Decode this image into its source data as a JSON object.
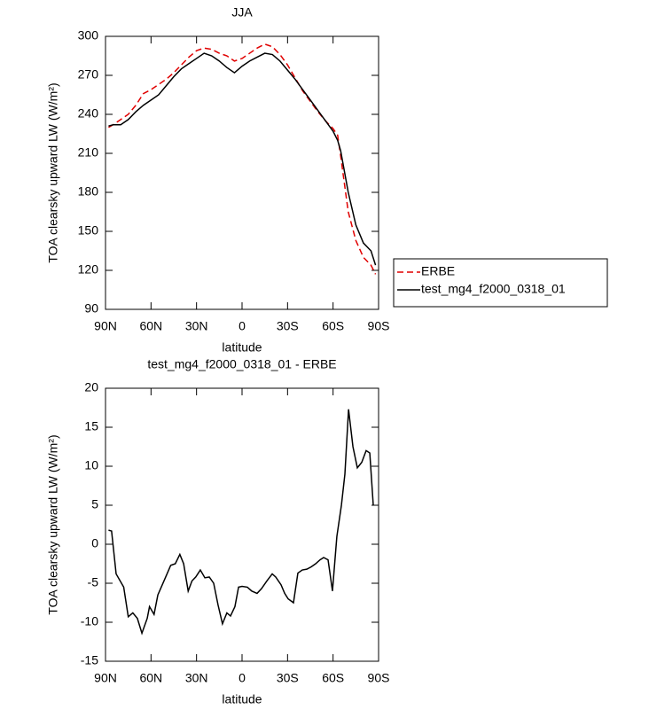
{
  "chart_data": [
    {
      "type": "line",
      "title": "JJA",
      "xlabel": "latitude",
      "ylabel": "TOA clearsky upward LW (W/m²)",
      "x": [
        88,
        85,
        80,
        75,
        70,
        65,
        60,
        55,
        50,
        45,
        40,
        35,
        30,
        25,
        20,
        15,
        10,
        5,
        0,
        -5,
        -10,
        -15,
        -20,
        -25,
        -30,
        -35,
        -40,
        -45,
        -50,
        -55,
        -60,
        -63,
        -65,
        -70,
        -75,
        -80,
        -85,
        -88
      ],
      "series": [
        {
          "name": "ERBE",
          "color": "#e00000",
          "line_style": "dashed",
          "values": [
            230,
            232,
            236,
            240,
            247,
            256,
            259,
            263,
            267,
            272,
            278,
            284,
            289,
            291,
            290,
            287,
            285,
            281,
            283,
            287,
            291,
            294,
            292,
            286,
            278,
            268,
            258,
            250,
            242,
            235,
            229,
            224,
            208,
            165,
            143,
            130,
            124,
            117
          ]
        },
        {
          "name": "test_mg4_f2000_0318_01",
          "color": "#000000",
          "line_style": "solid",
          "values": [
            231,
            232,
            232,
            236,
            242,
            247,
            251,
            255,
            262,
            269,
            275,
            279,
            283,
            287,
            285,
            281,
            276,
            272,
            277,
            281,
            284,
            287,
            286,
            281,
            274,
            267,
            259,
            251,
            243,
            235,
            227,
            220,
            212,
            180,
            155,
            141,
            135,
            124
          ]
        }
      ],
      "xlim": [
        90,
        -90
      ],
      "xticks": [
        {
          "value": 90,
          "label": "90N"
        },
        {
          "value": 60,
          "label": "60N"
        },
        {
          "value": 30,
          "label": "30N"
        },
        0,
        {
          "value": -30,
          "label": "30S"
        },
        {
          "value": -60,
          "label": "60S"
        },
        {
          "value": -90,
          "label": "90S"
        }
      ],
      "ylim": [
        90,
        300
      ],
      "yticks": [
        90,
        120,
        150,
        180,
        210,
        240,
        270,
        300
      ],
      "legend": "right"
    },
    {
      "type": "line",
      "title": "test_mg4_f2000_0318_01 - ERBE",
      "xlabel": "latitude",
      "ylabel": "TOA clearsky upward LW (W/m²)",
      "x": [
        88,
        86,
        83,
        78,
        75,
        72,
        69,
        66,
        62.5,
        61,
        58,
        55.5,
        51,
        47,
        44,
        41,
        38.5,
        35.5,
        33,
        30.5,
        27.5,
        24.5,
        21.6,
        18.7,
        15.8,
        12.9,
        10,
        7.6,
        4.7,
        2.3,
        0,
        -3.5,
        -6.4,
        -9.9,
        -12.8,
        -16.4,
        -19.9,
        -22.2,
        -25.7,
        -28.1,
        -30.4,
        -33.9,
        -36.8,
        -39.7,
        -42.7,
        -45.6,
        -48.5,
        -51.4,
        -53.8,
        -56.7,
        -59.6,
        -62.5,
        -65.5,
        -67.8,
        -70.2,
        -73.1,
        -76,
        -78.9,
        -81.8,
        -84.2,
        -86.5
      ],
      "series": [
        {
          "color": "#000000",
          "line_style": "solid",
          "values": [
            1.8,
            1.7,
            -3.8,
            -5.5,
            -9.3,
            -8.8,
            -9.5,
            -11.4,
            -9.5,
            -8,
            -9,
            -6.5,
            -4.5,
            -2.7,
            -2.5,
            -1.3,
            -2.5,
            -6,
            -4.7,
            -4.2,
            -3.3,
            -4.3,
            -4.2,
            -5,
            -7.8,
            -10.2,
            -8.8,
            -9.2,
            -8,
            -5.5,
            -5.4,
            -5.5,
            -6,
            -6.3,
            -5.7,
            -4.7,
            -3.8,
            -4.2,
            -5.2,
            -6.3,
            -7,
            -7.5,
            -3.7,
            -3.3,
            -3.2,
            -2.9,
            -2.5,
            -2,
            -1.7,
            -2,
            -6,
            1,
            5,
            9,
            17.3,
            12.5,
            9.8,
            10.5,
            12,
            11.7,
            5
          ]
        }
      ],
      "xlim": [
        90,
        -90
      ],
      "xticks": [
        {
          "value": 90,
          "label": "90N"
        },
        {
          "value": 60,
          "label": "60N"
        },
        {
          "value": 30,
          "label": "30N"
        },
        0,
        {
          "value": -30,
          "label": "30S"
        },
        {
          "value": -60,
          "label": "60S"
        },
        {
          "value": -90,
          "label": "90S"
        }
      ],
      "ylim": [
        -15,
        20
      ],
      "yticks": [
        -15,
        -10,
        -5,
        0,
        5,
        10,
        15,
        20
      ]
    }
  ]
}
